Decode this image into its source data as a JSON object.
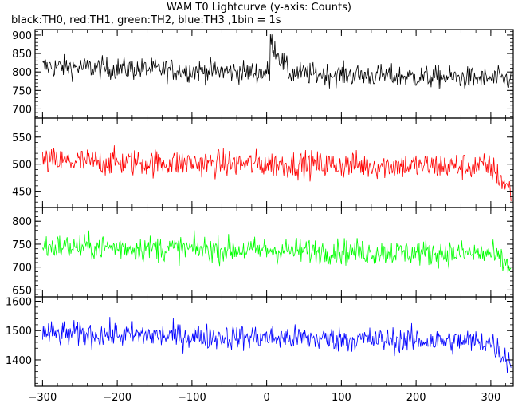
{
  "title": "WAM T0 Lightcurve (y-axis: Counts)",
  "subtitle": "black:TH0, red:TH1, green:TH2, blue:TH3 ,1bin = 1s",
  "chart_data": [
    {
      "type": "line",
      "name": "TH0",
      "color": "#000000",
      "xlim": [
        -310,
        330
      ],
      "ylim": [
        675,
        915
      ],
      "yticks": [
        700,
        750,
        800,
        850,
        900
      ],
      "x_range": [
        -300,
        327
      ],
      "mean_start": 815,
      "mean_end": 780,
      "noise": 28,
      "features": [
        {
          "x_start": 5,
          "x_end": 30,
          "peak": 885
        }
      ]
    },
    {
      "type": "line",
      "name": "TH1",
      "color": "#ff0000",
      "xlim": [
        -310,
        330
      ],
      "ylim": [
        420,
        585
      ],
      "yticks": [
        450,
        500,
        550
      ],
      "x_range": [
        -300,
        327
      ],
      "mean_start": 505,
      "mean_end": 495,
      "noise": 23,
      "tail": {
        "x_start": 300,
        "mean": 450
      }
    },
    {
      "type": "line",
      "name": "TH2",
      "color": "#00ff00",
      "xlim": [
        -310,
        330
      ],
      "ylim": [
        635,
        830
      ],
      "yticks": [
        650,
        700,
        750,
        800
      ],
      "x_range": [
        -300,
        327
      ],
      "mean_start": 745,
      "mean_end": 728,
      "noise": 26,
      "tail": {
        "x_start": 300,
        "mean": 700
      }
    },
    {
      "type": "line",
      "name": "TH3",
      "color": "#0000ff",
      "xlim": [
        -310,
        330
      ],
      "ylim": [
        1310,
        1615
      ],
      "yticks": [
        1400,
        1500,
        1600
      ],
      "x_range": [
        -300,
        327
      ],
      "mean_start": 1490,
      "mean_end": 1460,
      "noise": 40,
      "tail": {
        "x_start": 300,
        "mean": 1390
      }
    }
  ],
  "xaxis": {
    "ticks": [
      -300,
      -200,
      -100,
      0,
      100,
      200,
      300
    ]
  }
}
